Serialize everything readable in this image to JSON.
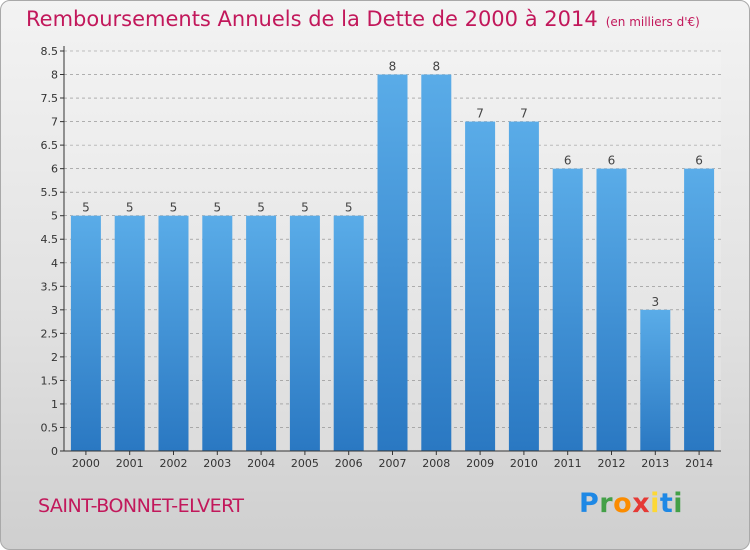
{
  "page": {
    "title": "Remboursements Annuels de la Dette de 2000 à 2014",
    "title_unit": "(en milliers d'€)",
    "place_name": "SAINT-BONNET-ELVERT",
    "logo": {
      "text": "Proxiti",
      "letters": [
        {
          "char": "P",
          "color": "#1e88e5"
        },
        {
          "char": "r",
          "color": "#43a047"
        },
        {
          "char": "o",
          "color": "#fb8c00"
        },
        {
          "char": "x",
          "color": "#e53935"
        },
        {
          "char": "i",
          "color": "#fdd835"
        },
        {
          "char": "t",
          "color": "#1e88e5"
        },
        {
          "char": "i",
          "color": "#43a047"
        }
      ]
    }
  },
  "colors": {
    "title": "#c2185b",
    "bar_light": "#5aace8",
    "bar_dark": "#2a78c2",
    "grid": "#888888",
    "axis": "#333333"
  },
  "chart_data": {
    "type": "bar",
    "title": "Remboursements Annuels de la Dette de 2000 à 2014",
    "subtitle": "(en milliers d'€)",
    "xlabel": "",
    "ylabel": "",
    "categories": [
      "2000",
      "2001",
      "2002",
      "2003",
      "2004",
      "2005",
      "2006",
      "2007",
      "2008",
      "2009",
      "2010",
      "2011",
      "2012",
      "2013",
      "2014"
    ],
    "values": [
      5,
      5,
      5,
      5,
      5,
      5,
      5,
      8,
      8,
      7,
      7,
      6,
      6,
      3,
      6
    ],
    "value_labels": [
      "5",
      "5",
      "5",
      "5",
      "5",
      "5",
      "5",
      "8",
      "8",
      "7",
      "7",
      "6",
      "6",
      "3",
      "6"
    ],
    "ylim": [
      0,
      8.5
    ],
    "yticks": [
      "0",
      "0.5",
      "1",
      "1.5",
      "2",
      "2.5",
      "3",
      "3.5",
      "4",
      "4.5",
      "5",
      "5.5",
      "6",
      "6.5",
      "7",
      "7.5",
      "8",
      "8.5"
    ],
    "grid": true,
    "legend": "none"
  }
}
